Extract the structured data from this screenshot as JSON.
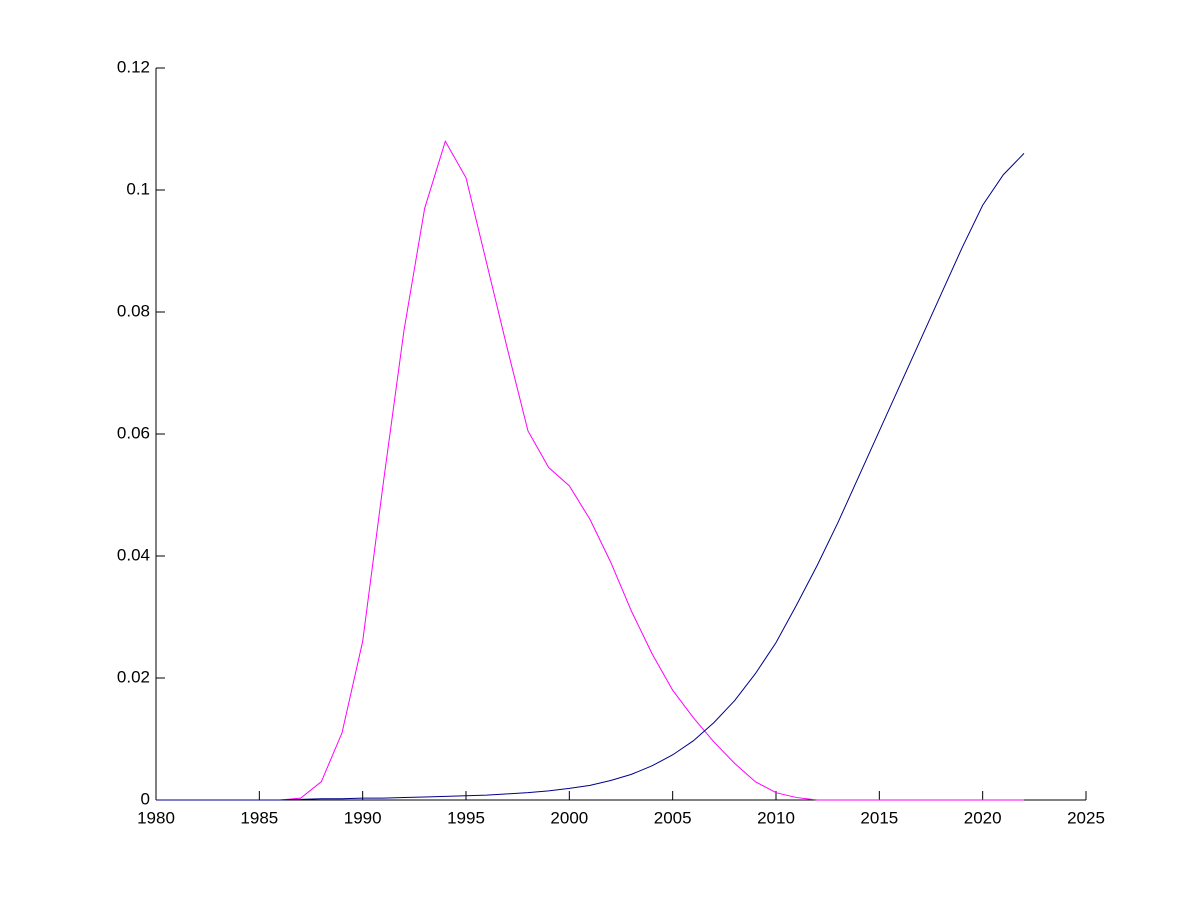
{
  "chart_data": {
    "type": "line",
    "x": [
      1980,
      1981,
      1982,
      1983,
      1984,
      1985,
      1986,
      1987,
      1988,
      1989,
      1990,
      1991,
      1992,
      1993,
      1994,
      1995,
      1996,
      1997,
      1998,
      1999,
      2000,
      2001,
      2002,
      2003,
      2004,
      2005,
      2006,
      2007,
      2008,
      2009,
      2010,
      2011,
      2012,
      2013,
      2014,
      2015,
      2016,
      2017,
      2018,
      2019,
      2020,
      2021,
      2022
    ],
    "series": [
      {
        "color": "#ff00ff",
        "values": [
          0,
          0,
          0,
          0,
          0,
          0,
          0,
          0.0003,
          0.003,
          0.011,
          0.026,
          0.052,
          0.077,
          0.097,
          0.108,
          0.102,
          0.088,
          0.074,
          0.0605,
          0.0545,
          0.0515,
          0.046,
          0.039,
          0.031,
          0.024,
          0.018,
          0.0135,
          0.0095,
          0.006,
          0.003,
          0.0012,
          0.0004,
          0,
          0,
          0,
          0,
          0,
          0,
          0,
          0,
          0,
          0,
          0
        ]
      },
      {
        "color": "#00008b",
        "values": [
          0,
          0,
          0,
          0,
          0,
          0,
          0,
          0.0001,
          0.0002,
          0.0002,
          0.0003,
          0.0003,
          0.0004,
          0.0005,
          0.0006,
          0.0007,
          0.0008,
          0.001,
          0.0012,
          0.0015,
          0.0019,
          0.0024,
          0.0032,
          0.0042,
          0.0056,
          0.0074,
          0.0097,
          0.0127,
          0.0163,
          0.0207,
          0.0258,
          0.032,
          0.0385,
          0.0455,
          0.053,
          0.0605,
          0.068,
          0.0755,
          0.083,
          0.0905,
          0.0975,
          0.1025,
          0.106
        ]
      }
    ],
    "xlim": [
      1980,
      2025
    ],
    "xticks": [
      1980,
      1985,
      1990,
      1995,
      2000,
      2005,
      2010,
      2015,
      2020,
      2025
    ],
    "ylim": [
      0,
      0.12
    ],
    "yticks": [
      0,
      0.02,
      0.04,
      0.06,
      0.08,
      0.1,
      0.12
    ],
    "grid": false
  }
}
